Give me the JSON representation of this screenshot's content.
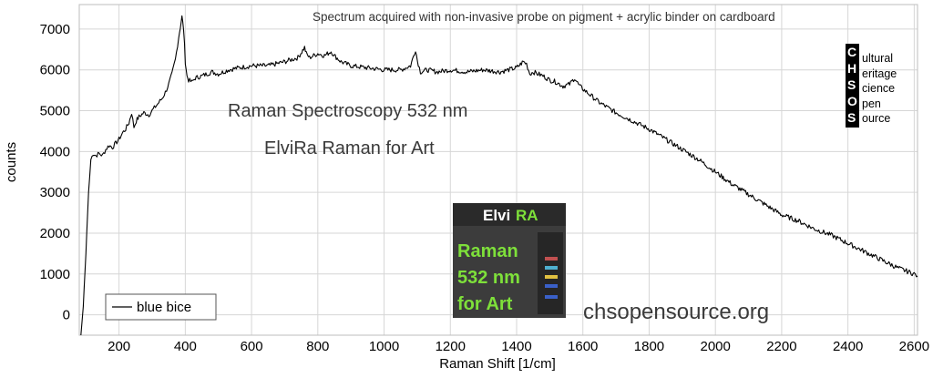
{
  "chart_data": {
    "type": "line",
    "title": "",
    "annotation": "Spectrum acquired with non-invasive probe on pigment + acrylic binder on cardboard",
    "overlay_text": [
      "Raman Spectroscopy 532 nm",
      "ElviRa Raman for Art"
    ],
    "website": "chsopensource.org",
    "xlabel": "Raman Shift [1/cm]",
    "ylabel": "counts",
    "xlim": [
      80,
      2610
    ],
    "ylim": [
      -500,
      7600
    ],
    "xticks": [
      200,
      400,
      600,
      800,
      1000,
      1200,
      1400,
      1600,
      1800,
      2000,
      2200,
      2400,
      2600
    ],
    "yticks": [
      0,
      1000,
      2000,
      3000,
      4000,
      5000,
      6000,
      7000
    ],
    "grid": true,
    "legend_position": "bottom-left",
    "series": [
      {
        "name": "blue bice",
        "color": "#000000",
        "x": [
          85,
          92,
          100,
          108,
          115,
          122,
          130,
          140,
          150,
          160,
          170,
          180,
          190,
          200,
          210,
          220,
          230,
          238,
          245,
          252,
          260,
          275,
          290,
          300,
          310,
          320,
          330,
          340,
          350,
          360,
          370,
          380,
          385,
          390,
          395,
          400,
          405,
          410,
          420,
          430,
          450,
          480,
          500,
          530,
          560,
          600,
          650,
          700,
          740,
          760,
          765,
          775,
          800,
          820,
          840,
          850,
          870,
          900,
          950,
          1000,
          1050,
          1080,
          1095,
          1100,
          1110,
          1130,
          1160,
          1200,
          1250,
          1300,
          1350,
          1400,
          1420,
          1430,
          1440,
          1450,
          1480,
          1500,
          1520,
          1540,
          1560,
          1575,
          1590,
          1620,
          1650,
          1700,
          1750,
          1800,
          1850,
          1900,
          1950,
          2000,
          2050,
          2100,
          2150,
          2200,
          2250,
          2300,
          2350,
          2400,
          2450,
          2500,
          2550,
          2600,
          2610
        ],
        "y": [
          -500,
          200,
          1500,
          3000,
          3800,
          3950,
          3900,
          3950,
          3900,
          4050,
          4150,
          4100,
          4200,
          4300,
          4450,
          4550,
          4700,
          4950,
          4600,
          4750,
          4850,
          4950,
          4900,
          5000,
          5100,
          5200,
          5300,
          5450,
          5650,
          5900,
          6250,
          6800,
          7050,
          7300,
          7000,
          6200,
          5850,
          5750,
          5700,
          5800,
          5850,
          5950,
          5900,
          6000,
          6050,
          6100,
          6100,
          6200,
          6300,
          6550,
          6400,
          6300,
          6400,
          6350,
          6450,
          6350,
          6200,
          6100,
          6050,
          6000,
          6000,
          6100,
          6500,
          6250,
          5950,
          6000,
          5950,
          6000,
          5950,
          6000,
          5950,
          6050,
          6200,
          6150,
          5900,
          5950,
          5850,
          5750,
          5700,
          5600,
          5650,
          5800,
          5600,
          5400,
          5200,
          4950,
          4750,
          4550,
          4300,
          4050,
          3800,
          3500,
          3200,
          2950,
          2700,
          2450,
          2300,
          2100,
          1950,
          1750,
          1550,
          1350,
          1150,
          1000,
          950
        ]
      }
    ]
  },
  "chs_logo": {
    "letters": [
      "C",
      "H",
      "S",
      "O",
      "S"
    ],
    "words": [
      "ultural",
      "eritage",
      "cience",
      "pen",
      "ource"
    ]
  },
  "elvira_logo": {
    "title_part1": "Elvi",
    "title_part2": "RA",
    "lines": [
      "Raman",
      "532 nm",
      "for Art"
    ]
  }
}
